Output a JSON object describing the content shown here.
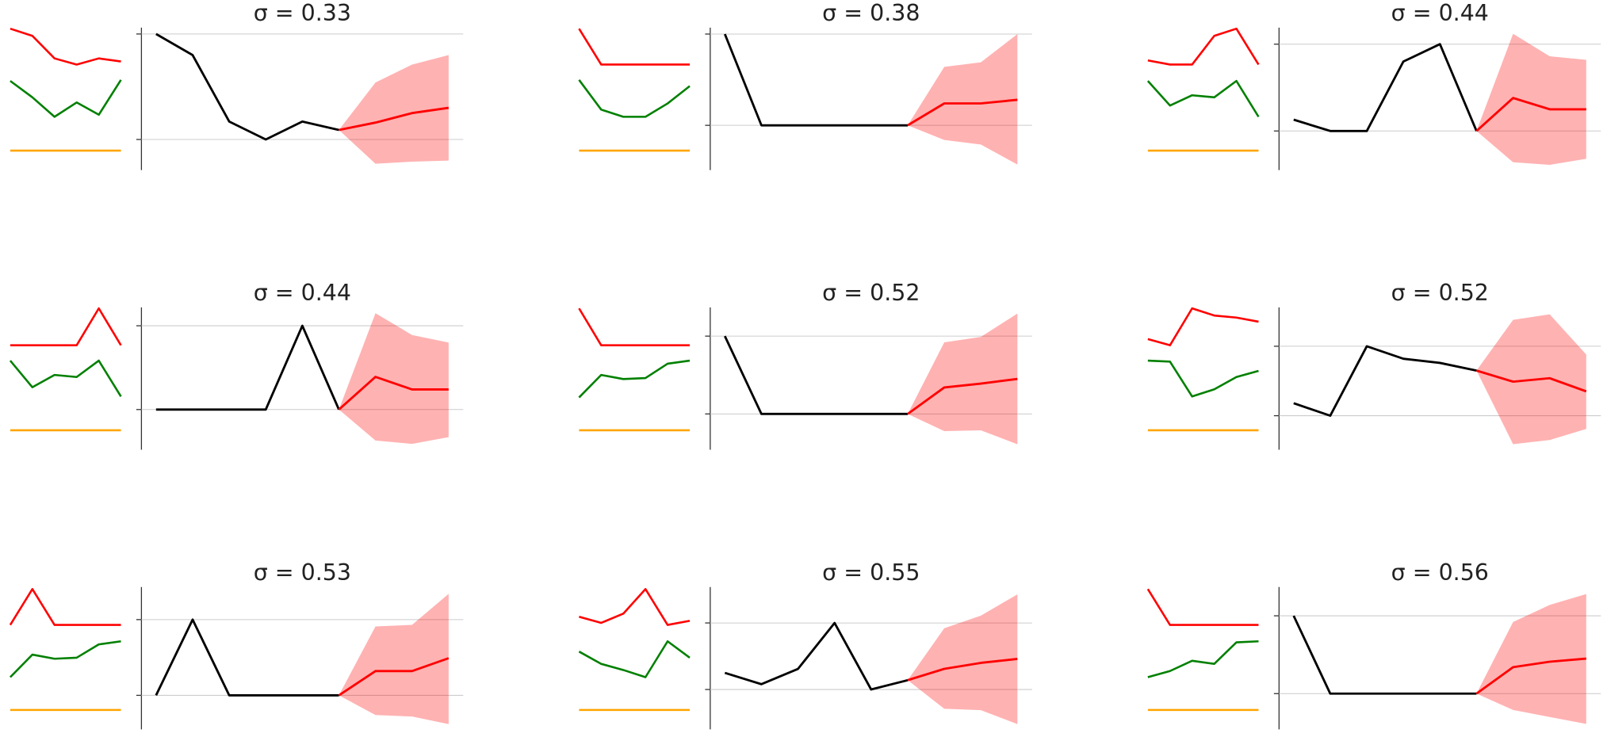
{
  "chart_data": [
    {
      "type": "line",
      "title": "σ = 0.33",
      "x": [
        0,
        1,
        2,
        3,
        4,
        5,
        6,
        7,
        8
      ],
      "xlim": [
        -0.4,
        8.4
      ],
      "ylim": [
        -0.29,
        1.06
      ],
      "yticks": [
        0,
        1
      ],
      "grid": true,
      "series": [
        {
          "color": "#000000",
          "values": [
            1,
            0.8,
            0.17,
            0,
            0.17,
            0.09,
            null,
            null,
            null
          ]
        },
        {
          "color": "#ff0000",
          "values": [
            null,
            null,
            null,
            null,
            null,
            0.09,
            0.16,
            0.25,
            0.3
          ],
          "upper": [
            null,
            null,
            null,
            null,
            null,
            0.09,
            0.54,
            0.71,
            0.8
          ],
          "lower": [
            null,
            null,
            null,
            null,
            null,
            0.09,
            -0.23,
            -0.21,
            -0.2
          ]
        }
      ],
      "inset": {
        "x": [
          0,
          1,
          2,
          3,
          4,
          5
        ],
        "xlim": [
          0,
          5
        ],
        "ylim": [
          0,
          13
        ],
        "series": [
          {
            "color": "#ff0000",
            "values": [
              12.2,
              11.5,
              9.3,
              8.7,
              9.3,
              9.0
            ]
          },
          {
            "color": "#008000",
            "values": [
              7.1,
              5.5,
              3.6,
              5.0,
              3.8,
              7.2
            ]
          },
          {
            "color": "#ffa500",
            "values": [
              0.3,
              0.3,
              0.3,
              0.3,
              0.3,
              0.3
            ]
          }
        ]
      }
    },
    {
      "type": "line",
      "title": "σ = 0.38",
      "x": [
        0,
        1,
        2,
        3,
        4,
        5,
        6,
        7,
        8
      ],
      "xlim": [
        -0.4,
        8.4
      ],
      "ylim": [
        -0.49,
        1.07
      ],
      "yticks": [
        0,
        1
      ],
      "grid": true,
      "series": [
        {
          "color": "#000000",
          "values": [
            1,
            0,
            0,
            0,
            0,
            0,
            null,
            null,
            null
          ]
        },
        {
          "color": "#ff0000",
          "values": [
            null,
            null,
            null,
            null,
            null,
            0,
            0.24,
            0.24,
            0.28
          ],
          "upper": [
            null,
            null,
            null,
            null,
            null,
            0,
            0.64,
            0.69,
            1.0
          ],
          "lower": [
            null,
            null,
            null,
            null,
            null,
            0,
            -0.16,
            -0.21,
            -0.43
          ]
        }
      ],
      "inset": {
        "x": [
          0,
          1,
          2,
          3,
          4,
          5
        ],
        "xlim": [
          0,
          5
        ],
        "ylim": [
          0,
          13
        ],
        "series": [
          {
            "color": "#ff0000",
            "values": [
              12.2,
              8.7,
              8.7,
              8.7,
              8.7,
              8.7
            ]
          },
          {
            "color": "#008000",
            "values": [
              7.2,
              4.3,
              3.6,
              3.6,
              4.9,
              6.6
            ]
          },
          {
            "color": "#ffa500",
            "values": [
              0.3,
              0.3,
              0.3,
              0.3,
              0.3,
              0.3
            ]
          }
        ]
      }
    },
    {
      "type": "line",
      "title": "σ = 0.44",
      "x": [
        0,
        1,
        2,
        3,
        4,
        5,
        6,
        7,
        8
      ],
      "xlim": [
        -0.4,
        8.4
      ],
      "ylim": [
        -0.45,
        1.19
      ],
      "yticks": [
        0,
        1
      ],
      "grid": true,
      "series": [
        {
          "color": "#000000",
          "values": [
            0.13,
            0,
            0,
            0.8,
            1,
            0,
            null,
            null,
            null
          ]
        },
        {
          "color": "#ff0000",
          "values": [
            null,
            null,
            null,
            null,
            null,
            0,
            0.38,
            0.25,
            0.25
          ],
          "upper": [
            null,
            null,
            null,
            null,
            null,
            0,
            1.12,
            0.86,
            0.82
          ],
          "lower": [
            null,
            null,
            null,
            null,
            null,
            0,
            -0.36,
            -0.39,
            -0.32
          ]
        }
      ],
      "inset": {
        "x": [
          0,
          1,
          2,
          3,
          4,
          5
        ],
        "xlim": [
          0,
          5
        ],
        "ylim": [
          0,
          13
        ],
        "series": [
          {
            "color": "#ff0000",
            "values": [
              9.1,
              8.7,
              8.7,
              11.5,
              12.2,
              8.7
            ]
          },
          {
            "color": "#008000",
            "values": [
              7.1,
              4.7,
              5.7,
              5.5,
              7.1,
              3.6
            ]
          },
          {
            "color": "#ffa500",
            "values": [
              0.3,
              0.3,
              0.3,
              0.3,
              0.3,
              0.3
            ]
          }
        ]
      }
    },
    {
      "type": "line",
      "title": "σ = 0.44",
      "x": [
        0,
        1,
        2,
        3,
        4,
        5,
        6,
        7,
        8
      ],
      "xlim": [
        -0.4,
        8.4
      ],
      "ylim": [
        -0.48,
        1.22
      ],
      "yticks": [
        0,
        1
      ],
      "grid": true,
      "series": [
        {
          "color": "#000000",
          "values": [
            0,
            0,
            0,
            0,
            1,
            0,
            null,
            null,
            null
          ]
        },
        {
          "color": "#ff0000",
          "values": [
            null,
            null,
            null,
            null,
            null,
            0,
            0.39,
            0.24,
            0.24
          ],
          "upper": [
            null,
            null,
            null,
            null,
            null,
            0,
            1.15,
            0.89,
            0.8
          ],
          "lower": [
            null,
            null,
            null,
            null,
            null,
            0,
            -0.37,
            -0.41,
            -0.33
          ]
        }
      ],
      "inset": {
        "x": [
          0,
          1,
          2,
          3,
          4,
          5
        ],
        "xlim": [
          0,
          5
        ],
        "ylim": [
          0,
          13
        ],
        "series": [
          {
            "color": "#ff0000",
            "values": [
              8.6,
              8.6,
              8.6,
              8.6,
              12.2,
              8.6
            ]
          },
          {
            "color": "#008000",
            "values": [
              7.1,
              4.5,
              5.7,
              5.5,
              7.1,
              3.6
            ]
          },
          {
            "color": "#ffa500",
            "values": [
              0.3,
              0.3,
              0.3,
              0.3,
              0.3,
              0.3
            ]
          }
        ]
      }
    },
    {
      "type": "line",
      "title": "σ = 0.52",
      "x": [
        0,
        1,
        2,
        3,
        4,
        5,
        6,
        7,
        8
      ],
      "xlim": [
        -0.4,
        8.4
      ],
      "ylim": [
        -0.46,
        1.37
      ],
      "yticks": [
        0,
        1
      ],
      "grid": true,
      "series": [
        {
          "color": "#000000",
          "values": [
            1,
            0,
            0,
            0,
            0,
            0,
            null,
            null,
            null
          ]
        },
        {
          "color": "#ff0000",
          "values": [
            null,
            null,
            null,
            null,
            null,
            0,
            0.34,
            0.39,
            0.45
          ],
          "upper": [
            null,
            null,
            null,
            null,
            null,
            0,
            0.92,
            0.99,
            1.29
          ],
          "lower": [
            null,
            null,
            null,
            null,
            null,
            0,
            -0.22,
            -0.21,
            -0.39
          ]
        }
      ],
      "inset": {
        "x": [
          0,
          1,
          2,
          3,
          4,
          5
        ],
        "xlim": [
          0,
          5
        ],
        "ylim": [
          0,
          13
        ],
        "series": [
          {
            "color": "#ff0000",
            "values": [
              12.2,
              8.6,
              8.6,
              8.6,
              8.6,
              8.6
            ]
          },
          {
            "color": "#008000",
            "values": [
              3.5,
              5.7,
              5.3,
              5.4,
              6.8,
              7.1
            ]
          },
          {
            "color": "#ffa500",
            "values": [
              0.3,
              0.3,
              0.3,
              0.3,
              0.3,
              0.3
            ]
          }
        ]
      }
    },
    {
      "type": "line",
      "title": "σ = 0.52",
      "x": [
        0,
        1,
        2,
        3,
        4,
        5,
        6,
        7,
        8
      ],
      "xlim": [
        -0.4,
        8.4
      ],
      "ylim": [
        -0.49,
        1.56
      ],
      "yticks": [
        0,
        1
      ],
      "grid": true,
      "series": [
        {
          "color": "#000000",
          "values": [
            0.18,
            0,
            1,
            0.82,
            0.76,
            0.65,
            null,
            null,
            null
          ]
        },
        {
          "color": "#ff0000",
          "values": [
            null,
            null,
            null,
            null,
            null,
            0.65,
            0.49,
            0.54,
            0.35
          ],
          "upper": [
            null,
            null,
            null,
            null,
            null,
            0.65,
            1.38,
            1.46,
            0.88
          ],
          "lower": [
            null,
            null,
            null,
            null,
            null,
            0.65,
            -0.41,
            -0.35,
            -0.19
          ]
        }
      ],
      "inset": {
        "x": [
          0,
          1,
          2,
          3,
          4,
          5
        ],
        "xlim": [
          0,
          5
        ],
        "ylim": [
          0,
          13
        ],
        "series": [
          {
            "color": "#ff0000",
            "values": [
              9.2,
              8.6,
              12.2,
              11.5,
              11.3,
              10.9
            ]
          },
          {
            "color": "#008000",
            "values": [
              7.1,
              7.0,
              3.6,
              4.3,
              5.5,
              6.1
            ]
          },
          {
            "color": "#ffa500",
            "values": [
              0.3,
              0.3,
              0.3,
              0.3,
              0.3,
              0.3
            ]
          }
        ]
      }
    },
    {
      "type": "line",
      "title": "σ = 0.53",
      "x": [
        0,
        1,
        2,
        3,
        4,
        5,
        6,
        7,
        8
      ],
      "xlim": [
        -0.4,
        8.4
      ],
      "ylim": [
        -0.45,
        1.43
      ],
      "yticks": [
        0,
        1
      ],
      "grid": true,
      "series": [
        {
          "color": "#000000",
          "values": [
            0,
            1,
            0,
            0,
            0,
            0,
            null,
            null,
            null
          ]
        },
        {
          "color": "#ff0000",
          "values": [
            null,
            null,
            null,
            null,
            null,
            0,
            0.32,
            0.32,
            0.49
          ],
          "upper": [
            null,
            null,
            null,
            null,
            null,
            0,
            0.91,
            0.93,
            1.34
          ],
          "lower": [
            null,
            null,
            null,
            null,
            null,
            0,
            -0.26,
            -0.28,
            -0.38
          ]
        }
      ],
      "inset": {
        "x": [
          0,
          1,
          2,
          3,
          4,
          5
        ],
        "xlim": [
          0,
          5
        ],
        "ylim": [
          0,
          13
        ],
        "series": [
          {
            "color": "#ff0000",
            "values": [
              8.6,
              12.1,
              8.6,
              8.6,
              8.6,
              8.6
            ]
          },
          {
            "color": "#008000",
            "values": [
              3.5,
              5.7,
              5.3,
              5.4,
              6.7,
              7.0
            ]
          },
          {
            "color": "#ffa500",
            "values": [
              0.3,
              0.3,
              0.3,
              0.3,
              0.3,
              0.3
            ]
          }
        ]
      }
    },
    {
      "type": "line",
      "title": "σ = 0.55",
      "x": [
        0,
        1,
        2,
        3,
        4,
        5,
        6,
        7,
        8
      ],
      "xlim": [
        -0.4,
        8.4
      ],
      "ylim": [
        -0.6,
        1.54
      ],
      "yticks": [
        0,
        1
      ],
      "grid": true,
      "series": [
        {
          "color": "#000000",
          "values": [
            0.25,
            0.08,
            0.31,
            1,
            0,
            0.14,
            null,
            null,
            null
          ]
        },
        {
          "color": "#ff0000",
          "values": [
            null,
            null,
            null,
            null,
            null,
            0.14,
            0.31,
            0.4,
            0.46
          ],
          "upper": [
            null,
            null,
            null,
            null,
            null,
            0.14,
            0.92,
            1.11,
            1.43
          ],
          "lower": [
            null,
            null,
            null,
            null,
            null,
            0.14,
            -0.29,
            -0.31,
            -0.52
          ]
        }
      ],
      "inset": {
        "x": [
          0,
          1,
          2,
          3,
          4,
          5
        ],
        "xlim": [
          0,
          5
        ],
        "ylim": [
          0,
          13
        ],
        "series": [
          {
            "color": "#ff0000",
            "values": [
              9.4,
              8.8,
              9.7,
              12.1,
              8.6,
              9.0
            ]
          },
          {
            "color": "#008000",
            "values": [
              6.0,
              4.8,
              4.2,
              3.5,
              7.0,
              5.4
            ]
          },
          {
            "color": "#ffa500",
            "values": [
              0.3,
              0.3,
              0.3,
              0.3,
              0.3,
              0.3
            ]
          }
        ]
      }
    },
    {
      "type": "line",
      "title": "σ = 0.56",
      "x": [
        0,
        1,
        2,
        3,
        4,
        5,
        6,
        7,
        8
      ],
      "xlim": [
        -0.4,
        8.4
      ],
      "ylim": [
        -0.46,
        1.37
      ],
      "yticks": [
        0,
        1
      ],
      "grid": true,
      "series": [
        {
          "color": "#000000",
          "values": [
            1,
            0,
            0,
            0,
            0,
            0,
            null,
            null,
            null
          ]
        },
        {
          "color": "#ff0000",
          "values": [
            null,
            null,
            null,
            null,
            null,
            0,
            0.34,
            0.41,
            0.45
          ],
          "upper": [
            null,
            null,
            null,
            null,
            null,
            0,
            0.92,
            1.14,
            1.28
          ],
          "lower": [
            null,
            null,
            null,
            null,
            null,
            0,
            -0.21,
            -0.3,
            -0.39
          ]
        }
      ],
      "inset": {
        "x": [
          0,
          1,
          2,
          3,
          4,
          5
        ],
        "xlim": [
          0,
          5
        ],
        "ylim": [
          0,
          13
        ],
        "series": [
          {
            "color": "#ff0000",
            "values": [
              12.1,
              8.6,
              8.6,
              8.6,
              8.6,
              8.6
            ]
          },
          {
            "color": "#008000",
            "values": [
              3.5,
              4.1,
              5.1,
              4.8,
              6.9,
              7.0
            ]
          },
          {
            "color": "#ffa500",
            "values": [
              0.3,
              0.3,
              0.3,
              0.3,
              0.3,
              0.3
            ]
          }
        ]
      }
    }
  ]
}
